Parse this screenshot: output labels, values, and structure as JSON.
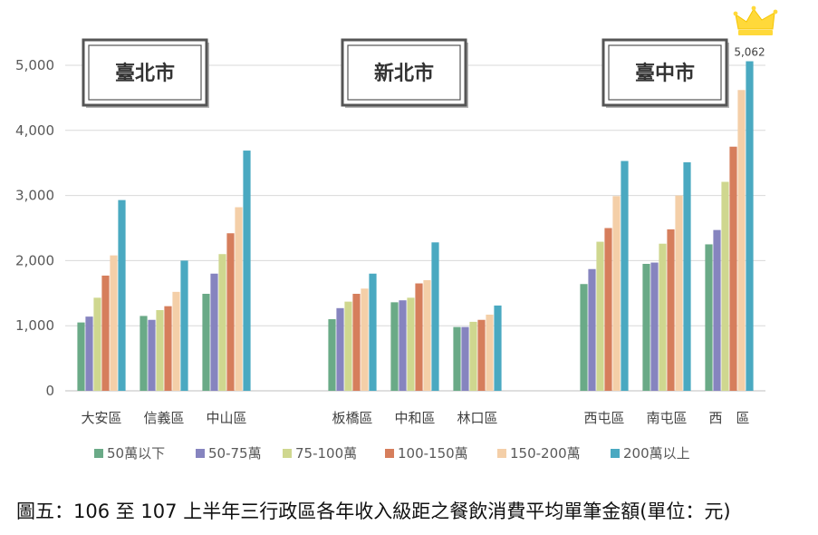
{
  "chart_data": {
    "type": "bar",
    "ylim": [
      0,
      5000
    ],
    "yticks": [
      "0",
      "1,000",
      "2,000",
      "3,000",
      "4,000",
      "5,000"
    ],
    "grid": true,
    "legend_position": "bottom",
    "groups": [
      {
        "name": "臺北市",
        "districts": [
          "大安區",
          "信義區",
          "中山區"
        ]
      },
      {
        "name": "新北市",
        "districts": [
          "板橋區",
          "中和區",
          "林口區"
        ]
      },
      {
        "name": "臺中市",
        "districts": [
          "西屯區",
          "南屯區",
          "西　區"
        ]
      }
    ],
    "categories": [
      "大安區",
      "信義區",
      "中山區",
      "板橋區",
      "中和區",
      "林口區",
      "西屯區",
      "南屯區",
      "西　區"
    ],
    "series": [
      {
        "name": "50萬以下",
        "color": "#6aaa87",
        "values": [
          1050,
          1150,
          1490,
          1100,
          1360,
          980,
          1640,
          1950,
          2250
        ]
      },
      {
        "name": "50-75萬",
        "color": "#8684bf",
        "values": [
          1140,
          1090,
          1800,
          1270,
          1390,
          980,
          1870,
          1970,
          2470
        ]
      },
      {
        "name": "75-100萬",
        "color": "#cfd78f",
        "values": [
          1430,
          1240,
          2100,
          1370,
          1430,
          1060,
          2290,
          2260,
          3210
        ]
      },
      {
        "name": "100-150萬",
        "color": "#d67e5c",
        "values": [
          1770,
          1300,
          2420,
          1490,
          1650,
          1090,
          2500,
          2480,
          3750
        ]
      },
      {
        "name": "150-200萬",
        "color": "#f4cfa8",
        "values": [
          2080,
          1520,
          2820,
          1570,
          1700,
          1170,
          2990,
          3000,
          4620
        ]
      },
      {
        "name": "200萬以上",
        "color": "#4aa9c1",
        "values": [
          2930,
          2000,
          3690,
          1800,
          2280,
          1310,
          3530,
          3510,
          5062
        ]
      }
    ],
    "annotation": {
      "text": "5,062",
      "category": "西　區",
      "series": "200萬以上"
    }
  },
  "caption": "圖五：106 至 107 上半年三行政區各年收入級距之餐飲消費平均單筆金額(單位：元)"
}
